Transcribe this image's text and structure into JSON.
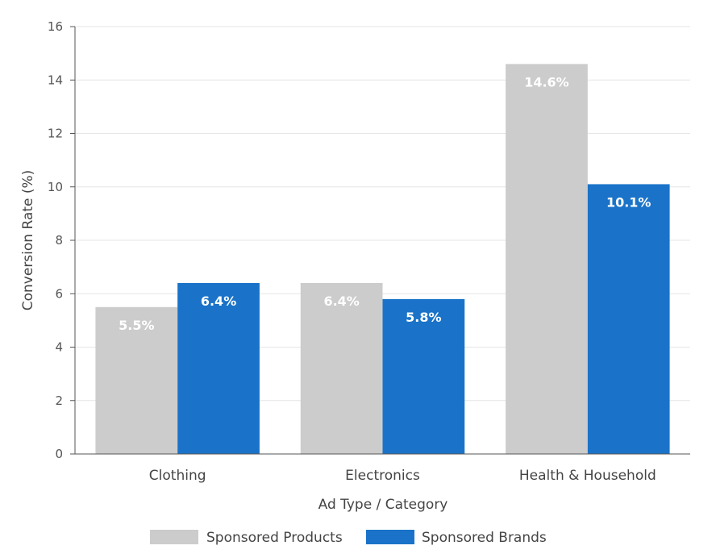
{
  "chart_data": {
    "type": "bar",
    "title": "",
    "xlabel": "Ad Type / Category",
    "ylabel": "Conversion Rate (%)",
    "categories": [
      "Clothing",
      "Electronics",
      "Health & Household"
    ],
    "series": [
      {
        "name": "Sponsored Products",
        "color": "#cccccc",
        "values": [
          5.5,
          6.4,
          14.6
        ],
        "labels": [
          "5.5%",
          "6.4%",
          "14.6%"
        ]
      },
      {
        "name": "Sponsored Brands",
        "color": "#1a73c8",
        "values": [
          6.4,
          5.8,
          10.1
        ],
        "labels": [
          "6.4%",
          "5.8%",
          "10.1%"
        ]
      }
    ],
    "ylim": [
      0,
      16
    ],
    "yticks": [
      0,
      2,
      4,
      6,
      8,
      10,
      12,
      14,
      16
    ],
    "grid": true,
    "legend": "bottom"
  }
}
